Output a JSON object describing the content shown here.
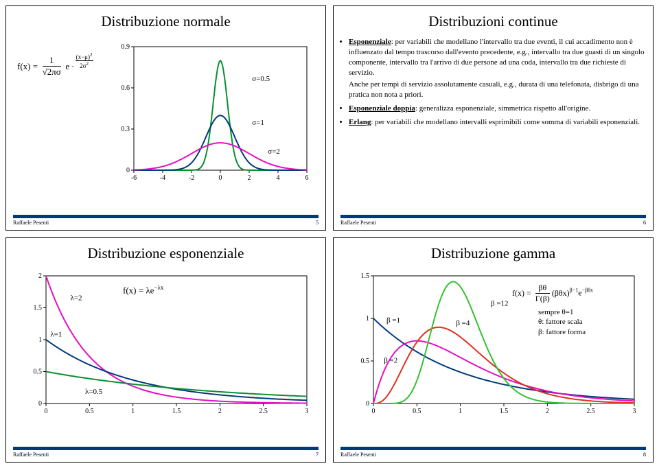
{
  "slides": {
    "s1": {
      "title": "Distribuzione normale",
      "footer_author": "Raffaele Pesenti",
      "page_no": "5",
      "formula": "f(x) = (1 / √(2π)σ) · e^(-(x-μ)² / 2σ²)",
      "chart": {
        "xlim": [
          -6,
          6
        ],
        "ylim": [
          0,
          0.9
        ],
        "xticks": [
          -6,
          -4,
          -2,
          0,
          2,
          4,
          6
        ],
        "yticks": [
          0,
          0.3,
          0.6,
          0.9
        ],
        "curves": [
          {
            "label": "σ=0.5",
            "sigma": 0.5,
            "color": "#0a8f2f"
          },
          {
            "label": "σ=1",
            "sigma": 1.0,
            "color": "#003a7a"
          },
          {
            "label": "σ=2",
            "sigma": 2.0,
            "color": "#e60ec4"
          }
        ],
        "label_positions": {
          "σ=0.5": [
            2.2,
            0.65
          ],
          "σ=1": [
            2.2,
            0.33
          ],
          "σ=2": [
            3.3,
            0.12
          ]
        },
        "grid_color": "#000",
        "line_width": 2,
        "font_size": 10
      }
    },
    "s2": {
      "title": "Distribuzioni continue",
      "footer_author": "Raffaele Pesenti",
      "page_no": "6",
      "bullet1_lead": "Esponenziale",
      "bullet1_text": ": per variabili che modellano l'intervallo tra due eventi, il cui accadimento non è influenzato dal tempo trascorso dall'evento precedente, e.g., intervallo tra due guasti di un singolo componente, intervallo tra l'arrivo di due persone ad una coda, intervallo tra due richieste di servizio.",
      "bullet1_sub": "Anche per tempi di servizio assolutamente casuali, e.g., durata di una telefonata, disbrigo di una pratica non nota a priori.",
      "bullet2_lead": "Esponenziale doppia",
      "bullet2_text": ": generalizza esponenziale, simmetrica rispetto all'origine.",
      "bullet3_lead": "Erlang",
      "bullet3_text": ": per variabili che modellano intervalli esprimibili come somma di variabili esponenziali."
    },
    "s3": {
      "title": "Distribuzione esponenziale",
      "footer_author": "Raffaele Pesenti",
      "page_no": "7",
      "formula": "f(x) = λe^(-λx)",
      "chart": {
        "xlim": [
          0,
          3
        ],
        "ylim": [
          0,
          2
        ],
        "xticks": [
          0,
          0.5,
          1,
          1.5,
          2,
          2.5,
          3
        ],
        "yticks": [
          0,
          0.5,
          1,
          1.5,
          2
        ],
        "curves": [
          {
            "label": "λ=2",
            "lambda": 2.0,
            "color": "#e60ec4"
          },
          {
            "label": "λ=1",
            "lambda": 1.0,
            "color": "#003a7a"
          },
          {
            "label": "λ=0.5",
            "lambda": 0.5,
            "color": "#0a8f2f"
          }
        ],
        "label_positions": {
          "λ=2": [
            0.28,
            1.62
          ],
          "λ=1": [
            0.05,
            1.05
          ],
          "λ=0.5": [
            0.45,
            0.15
          ]
        },
        "grid_color": "#000",
        "line_width": 2,
        "font_size": 10
      }
    },
    "s4": {
      "title": "Distribuzione gamma",
      "footer_author": "Raffaele Pesenti",
      "page_no": "8",
      "formula": "f(x) = (βθ / Γ(β)) (βθx)^(β-1) e^(-βθx)",
      "note1": "sempre θ=1",
      "note2": "θ: fattore scala",
      "note3": "β: fattore forma",
      "chart": {
        "xlim": [
          0,
          3
        ],
        "ylim": [
          0,
          1.5
        ],
        "xticks": [
          0,
          0.5,
          1,
          1.5,
          2,
          2.5,
          3
        ],
        "yticks": [
          0,
          0.5,
          1,
          1.5
        ],
        "curves": [
          {
            "label": "β =1",
            "beta": 1,
            "color": "#003a7a"
          },
          {
            "label": "β =2",
            "beta": 2,
            "color": "#e60ec4"
          },
          {
            "label": "β =4",
            "beta": 4,
            "color": "#e03020"
          },
          {
            "label": "β =12",
            "beta": 12,
            "color": "#35c030"
          }
        ],
        "label_positions": {
          "β =1": [
            0.15,
            0.95
          ],
          "β =2": [
            0.12,
            0.48
          ],
          "β =4": [
            0.95,
            0.92
          ],
          "β =12": [
            1.35,
            1.15
          ]
        },
        "grid_color": "#000",
        "line_width": 2,
        "font_size": 10
      }
    }
  }
}
